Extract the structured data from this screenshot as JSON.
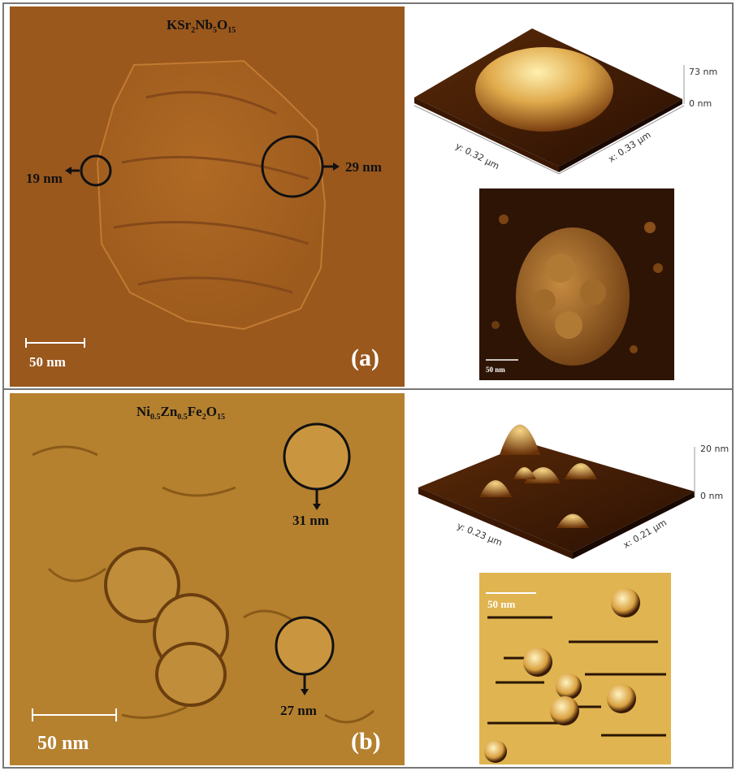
{
  "panel_a": {
    "formula": [
      {
        "text": "KSr"
      },
      {
        "sub": "2"
      },
      {
        "text": "Nb"
      },
      {
        "sub": "5"
      },
      {
        "text": "O"
      },
      {
        "sub": "15"
      }
    ],
    "left_size": "19 nm",
    "right_size": "29 nm",
    "scale_bar": "50 nm",
    "label": "(a)",
    "surface_3d": {
      "z_max": "73 nm",
      "z_min": "0 nm",
      "y_axis": "y: 0.32 μm",
      "x_axis": "x: 0.33 μm"
    },
    "topography_scale_bar": "50 nm"
  },
  "panel_b": {
    "formula": [
      {
        "text": "Ni"
      },
      {
        "sub": "0.5"
      },
      {
        "text": "Zn"
      },
      {
        "sub": "0.5"
      },
      {
        "text": "Fe"
      },
      {
        "sub": "2"
      },
      {
        "text": "O"
      },
      {
        "sub": "15"
      }
    ],
    "top_size": "31 nm",
    "bottom_size": "27 nm",
    "scale_bar": "50 nm",
    "label": "(b)",
    "surface_3d": {
      "z_max": "20 nm",
      "z_min": "0 nm",
      "y_axis": "y: 0.23 μm",
      "x_axis": "x: 0.21 μm"
    },
    "topography_scale_bar": "50 nm"
  }
}
